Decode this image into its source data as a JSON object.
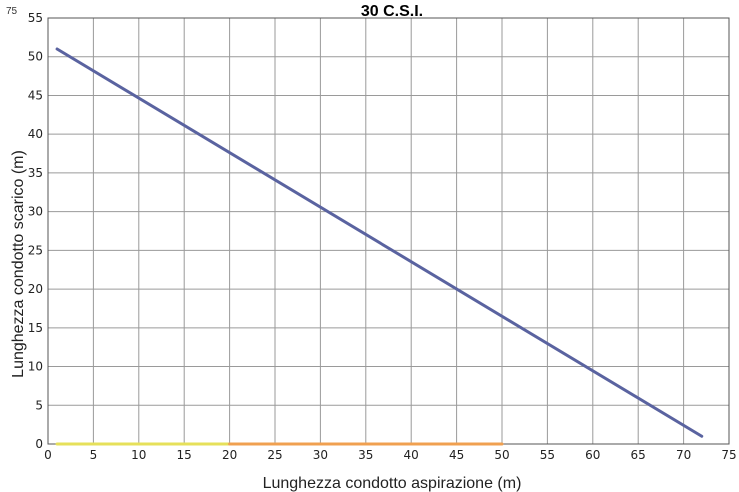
{
  "corner_label": "75",
  "chart_data": {
    "type": "line",
    "title": "30 C.S.I.",
    "xlabel": "Lunghezza condotto aspirazione (m)",
    "ylabel": "Lunghezza condotto scarico (m)",
    "xlim": [
      0,
      75
    ],
    "ylim": [
      0,
      55
    ],
    "xticks": [
      0,
      5,
      10,
      15,
      20,
      25,
      30,
      35,
      40,
      45,
      50,
      55,
      60,
      65,
      70,
      75
    ],
    "yticks": [
      0,
      5,
      10,
      15,
      20,
      25,
      30,
      35,
      40,
      45,
      50,
      55
    ],
    "grid": true,
    "series": [
      {
        "color": "#5a63a0",
        "x": [
          1,
          72
        ],
        "y": [
          51,
          1
        ]
      },
      {
        "color": "#e6e05a",
        "x": [
          1,
          20
        ],
        "y": [
          0,
          0
        ]
      },
      {
        "color": "#f0a050",
        "x": [
          20,
          50
        ],
        "y": [
          0,
          0
        ]
      }
    ]
  }
}
